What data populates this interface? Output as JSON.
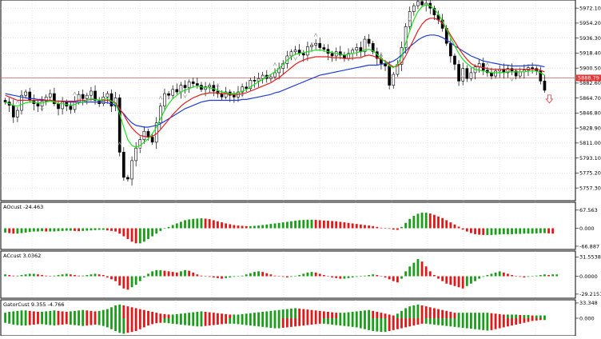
{
  "chart_data": [
    {
      "id": "price",
      "type": "candlestick",
      "y_ticks": [
        "5972.10",
        "5954.20",
        "5936.30",
        "5918.40",
        "5900.50",
        "5882.60",
        "5864.70",
        "5846.80",
        "5828.90",
        "5811.00",
        "5793.10",
        "5775.20",
        "5757.30"
      ],
      "y_tick_values": [
        5972.1,
        5954.2,
        5936.3,
        5918.4,
        5900.5,
        5882.6,
        5864.7,
        5846.8,
        5828.9,
        5811.0,
        5793.1,
        5775.2,
        5757.3
      ],
      "ylim": [
        5745,
        5978
      ],
      "current_price_label": "5888.79",
      "current_price": 5888.79,
      "series": [
        {
          "key": "close",
          "values": [
            5860,
            5856,
            5842,
            5850,
            5868,
            5872,
            5862,
            5858,
            5855,
            5861,
            5866,
            5870,
            5858,
            5852,
            5860,
            5855,
            5851,
            5860,
            5869,
            5864,
            5868,
            5873,
            5862,
            5858,
            5866,
            5870,
            5855,
            5865,
            5800,
            5770,
            5768,
            5790,
            5805,
            5815,
            5825,
            5818,
            5812,
            5835,
            5855,
            5870,
            5868,
            5875,
            5872,
            5880,
            5877,
            5884,
            5882,
            5880,
            5875,
            5878,
            5880,
            5873,
            5870,
            5866,
            5872,
            5868,
            5866,
            5872,
            5878,
            5876,
            5886,
            5885,
            5888,
            5892,
            5888,
            5890,
            5895,
            5900,
            5906,
            5915,
            5920,
            5922,
            5918,
            5916,
            5926,
            5928,
            5930,
            5925,
            5923,
            5918,
            5915,
            5920,
            5916,
            5912,
            5918,
            5922,
            5925,
            5920,
            5935,
            5930,
            5920,
            5912,
            5906,
            5903,
            5880,
            5893,
            5905,
            5925,
            5950,
            5968,
            5975,
            5980,
            5976,
            5978,
            5972,
            5964,
            5958,
            5948,
            5930,
            5915,
            5905,
            5885,
            5900,
            5888,
            5895,
            5902,
            5906,
            5898,
            5895,
            5891,
            5897,
            5899,
            5895,
            5900,
            5897,
            5891,
            5896,
            5898,
            5901,
            5900,
            5897,
            5885,
            5874
          ]
        },
        {
          "key": "ma_blue",
          "values": [
            5870,
            5869,
            5868,
            5867,
            5866,
            5865,
            5864,
            5864,
            5863,
            5863,
            5862,
            5862,
            5861,
            5861,
            5861,
            5860,
            5860,
            5860,
            5860,
            5860,
            5860,
            5860,
            5860,
            5860,
            5860,
            5859,
            5858,
            5856,
            5851,
            5846,
            5840,
            5835,
            5832,
            5831,
            5830,
            5830,
            5831,
            5832,
            5834,
            5837,
            5840,
            5843,
            5846,
            5849,
            5852,
            5854,
            5856,
            5858,
            5860,
            5861,
            5862,
            5862,
            5862,
            5862,
            5862,
            5862,
            5862,
            5862,
            5863,
            5863,
            5864,
            5865,
            5866,
            5867,
            5868,
            5869,
            5871,
            5872,
            5874,
            5876,
            5878,
            5880,
            5882,
            5884,
            5886,
            5888,
            5890,
            5892,
            5893,
            5894,
            5895,
            5896,
            5897,
            5898,
            5899,
            5900,
            5901,
            5902,
            5903,
            5904,
            5904,
            5904,
            5905,
            5906,
            5907,
            5909,
            5912,
            5916,
            5921,
            5926,
            5930,
            5934,
            5937,
            5939,
            5940,
            5940,
            5939,
            5937,
            5934,
            5931,
            5927,
            5924,
            5921,
            5918,
            5915,
            5913,
            5911,
            5909,
            5908,
            5907,
            5906,
            5905,
            5904,
            5904,
            5903,
            5903,
            5903,
            5903,
            5904,
            5904,
            5904,
            5903,
            5902
          ]
        },
        {
          "key": "ma_red",
          "values": [
            5868,
            5866,
            5864,
            5862,
            5862,
            5862,
            5862,
            5862,
            5862,
            5862,
            5862,
            5862,
            5861,
            5861,
            5861,
            5861,
            5861,
            5861,
            5862,
            5862,
            5862,
            5863,
            5863,
            5862,
            5862,
            5862,
            5861,
            5859,
            5852,
            5845,
            5836,
            5829,
            5824,
            5820,
            5819,
            5818,
            5819,
            5822,
            5827,
            5833,
            5839,
            5845,
            5850,
            5855,
            5859,
            5862,
            5865,
            5867,
            5869,
            5870,
            5871,
            5871,
            5871,
            5870,
            5870,
            5869,
            5869,
            5869,
            5870,
            5871,
            5873,
            5875,
            5877,
            5879,
            5881,
            5883,
            5886,
            5889,
            5893,
            5897,
            5901,
            5905,
            5908,
            5910,
            5912,
            5913,
            5914,
            5914,
            5914,
            5914,
            5913,
            5913,
            5913,
            5912,
            5912,
            5912,
            5913,
            5913,
            5915,
            5916,
            5915,
            5913,
            5911,
            5909,
            5905,
            5902,
            5903,
            5907,
            5915,
            5925,
            5935,
            5945,
            5953,
            5958,
            5960,
            5960,
            5958,
            5954,
            5948,
            5940,
            5932,
            5924,
            5917,
            5911,
            5906,
            5903,
            5902,
            5901,
            5900,
            5899,
            5899,
            5899,
            5899,
            5899,
            5899,
            5899,
            5899,
            5899,
            5899,
            5899,
            5899,
            5898,
            5896
          ]
        },
        {
          "key": "ma_green",
          "values": [
            5860,
            5858,
            5856,
            5855,
            5857,
            5859,
            5860,
            5860,
            5859,
            5859,
            5860,
            5861,
            5860,
            5858,
            5858,
            5857,
            5856,
            5857,
            5859,
            5860,
            5862,
            5864,
            5863,
            5862,
            5863,
            5864,
            5861,
            5858,
            5846,
            5830,
            5815,
            5808,
            5806,
            5808,
            5812,
            5816,
            5822,
            5830,
            5840,
            5850,
            5858,
            5864,
            5868,
            5872,
            5874,
            5876,
            5878,
            5879,
            5878,
            5877,
            5877,
            5876,
            5874,
            5872,
            5871,
            5870,
            5870,
            5871,
            5873,
            5875,
            5878,
            5881,
            5884,
            5887,
            5890,
            5893,
            5896,
            5900,
            5905,
            5910,
            5914,
            5917,
            5918,
            5919,
            5920,
            5921,
            5922,
            5922,
            5921,
            5920,
            5919,
            5918,
            5917,
            5916,
            5917,
            5918,
            5919,
            5920,
            5922,
            5923,
            5921,
            5917,
            5912,
            5908,
            5903,
            5901,
            5905,
            5915,
            5930,
            5945,
            5958,
            5968,
            5974,
            5976,
            5975,
            5971,
            5965,
            5957,
            5947,
            5937,
            5927,
            5918,
            5911,
            5906,
            5902,
            5899,
            5898,
            5897,
            5896,
            5895,
            5895,
            5895,
            5895,
            5896,
            5896,
            5896,
            5896,
            5896,
            5897,
            5897,
            5897,
            5895,
            5892
          ]
        }
      ]
    },
    {
      "id": "aocust",
      "type": "histogram",
      "title": "AOcust -24.463",
      "y_ticks": [
        "67.563",
        "0.000",
        "-66.887"
      ],
      "y_tick_values": [
        67.563,
        0,
        -66.887
      ],
      "ylim": [
        -70,
        70
      ],
      "values": [
        -16,
        -18,
        -20,
        -20,
        -18,
        -16,
        -14,
        -12,
        -12,
        -11,
        -12,
        -12,
        -12,
        -11,
        -10,
        -9,
        -9,
        -10,
        -11,
        -10,
        -9,
        -8,
        -7,
        -6,
        -6,
        -8,
        -10,
        -12,
        -20,
        -30,
        -40,
        -50,
        -56,
        -56,
        -50,
        -40,
        -30,
        -20,
        -10,
        -2,
        5,
        12,
        18,
        24,
        30,
        33,
        35,
        36,
        37,
        36,
        34,
        30,
        26,
        22,
        18,
        15,
        12,
        10,
        9,
        8,
        8,
        9,
        10,
        12,
        14,
        16,
        18,
        20,
        22,
        24,
        26,
        28,
        30,
        31,
        32,
        32,
        31,
        30,
        29,
        28,
        27,
        26,
        24,
        22,
        20,
        18,
        16,
        14,
        12,
        10,
        8,
        5,
        2,
        0,
        -2,
        -5,
        -6,
        5,
        20,
        35,
        46,
        54,
        58,
        58,
        55,
        50,
        44,
        38,
        30,
        22,
        14,
        6,
        -5,
        -12,
        -18,
        -22,
        -24,
        -25,
        -25,
        -25,
        -24,
        -23,
        -22,
        -22,
        -22,
        -21,
        -21,
        -20,
        -20,
        -20,
        -19,
        -18,
        -18,
        -19,
        -20
      ]
    },
    {
      "id": "accust",
      "type": "histogram",
      "title": "ACcust 3.0362",
      "y_ticks": [
        "31.5538",
        "0.0000",
        "-29.2151"
      ],
      "y_tick_values": [
        31.5538,
        0,
        -29.2151
      ],
      "ylim": [
        -32,
        32
      ],
      "values": [
        3,
        2,
        1,
        1,
        2,
        3,
        4,
        4,
        3,
        2,
        1,
        0,
        1,
        2,
        3,
        4,
        3,
        2,
        1,
        1,
        2,
        3,
        4,
        3,
        2,
        -2,
        -5,
        -8,
        -15,
        -20,
        -22,
        -18,
        -14,
        -8,
        -2,
        4,
        8,
        10,
        10,
        9,
        8,
        7,
        6,
        8,
        10,
        9,
        6,
        3,
        1,
        0,
        -1,
        -2,
        -3,
        -4,
        -3,
        -2,
        -1,
        0,
        1,
        3,
        5,
        7,
        8,
        7,
        5,
        3,
        1,
        0,
        -1,
        -2,
        -1,
        0,
        2,
        4,
        6,
        7,
        6,
        4,
        2,
        0,
        -2,
        -3,
        -4,
        -4,
        -3,
        -2,
        -1,
        0,
        1,
        2,
        3,
        2,
        0,
        -2,
        -5,
        -8,
        -10,
        -4,
        8,
        16,
        22,
        28,
        24,
        16,
        8,
        2,
        -4,
        -8,
        -12,
        -14,
        -16,
        -18,
        -20,
        -16,
        -12,
        -8,
        -4,
        -1,
        2,
        4,
        6,
        8,
        6,
        4,
        2,
        0,
        -1,
        -2,
        -1,
        0,
        1,
        2,
        3,
        2,
        3,
        3
      ]
    },
    {
      "id": "gatorcust",
      "type": "histogram",
      "title": "GatorCust 9.355 -4.766",
      "y_ticks": [
        "33.348",
        "0.000"
      ],
      "y_tick_values": [
        33.348,
        0
      ],
      "ylim": [
        -35,
        35
      ],
      "values_up": [
        12,
        14,
        15,
        16,
        17,
        17,
        16,
        15,
        14,
        14,
        15,
        16,
        17,
        16,
        15,
        14,
        15,
        16,
        17,
        18,
        17,
        16,
        15,
        16,
        18,
        20,
        24,
        28,
        30,
        28,
        26,
        24,
        22,
        20,
        18,
        16,
        14,
        12,
        10,
        9,
        8,
        8,
        9,
        10,
        11,
        12,
        13,
        14,
        15,
        14,
        13,
        12,
        11,
        10,
        9,
        8,
        8,
        8,
        9,
        10,
        11,
        12,
        13,
        14,
        15,
        16,
        17,
        18,
        19,
        20,
        21,
        22,
        21,
        20,
        19,
        18,
        17,
        16,
        15,
        14,
        13,
        12,
        12,
        12,
        13,
        14,
        15,
        16,
        17,
        18,
        16,
        14,
        12,
        10,
        8,
        6,
        10,
        16,
        22,
        26,
        28,
        30,
        28,
        26,
        24,
        22,
        20,
        18,
        16,
        14,
        12,
        12,
        12,
        12,
        12,
        12,
        12,
        12,
        12,
        11,
        10,
        9,
        8,
        8,
        8,
        8,
        7,
        7,
        7,
        6,
        6,
        6,
        6
      ],
      "values_down": [
        -10,
        -12,
        -14,
        -15,
        -16,
        -16,
        -15,
        -14,
        -13,
        -13,
        -14,
        -15,
        -16,
        -15,
        -14,
        -13,
        -14,
        -15,
        -16,
        -17,
        -16,
        -15,
        -14,
        -15,
        -17,
        -20,
        -24,
        -28,
        -32,
        -34,
        -32,
        -30,
        -28,
        -24,
        -20,
        -16,
        -13,
        -11,
        -10,
        -10,
        -11,
        -12,
        -13,
        -14,
        -15,
        -16,
        -17,
        -18,
        -18,
        -17,
        -16,
        -15,
        -14,
        -13,
        -12,
        -12,
        -12,
        -13,
        -14,
        -15,
        -16,
        -17,
        -18,
        -19,
        -20,
        -21,
        -22,
        -22,
        -21,
        -20,
        -19,
        -18,
        -17,
        -16,
        -15,
        -14,
        -13,
        -12,
        -12,
        -13,
        -14,
        -15,
        -16,
        -17,
        -18,
        -19,
        -20,
        -22,
        -24,
        -26,
        -28,
        -29,
        -30,
        -30,
        -28,
        -26,
        -24,
        -22,
        -20,
        -18,
        -16,
        -14,
        -12,
        -12,
        -13,
        -14,
        -15,
        -16,
        -17,
        -18,
        -19,
        -20,
        -21,
        -22,
        -23,
        -24,
        -25,
        -26,
        -27,
        -26,
        -24,
        -22,
        -20,
        -18,
        -16,
        -14,
        -12,
        -10,
        -8,
        -6,
        -5,
        -4,
        -4
      ]
    }
  ]
}
